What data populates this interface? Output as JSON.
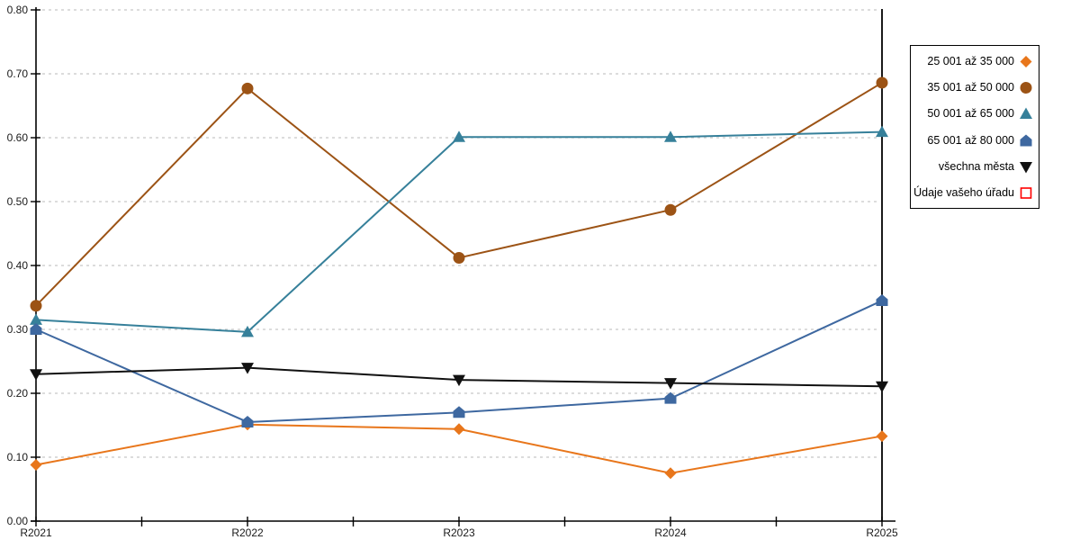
{
  "page": {
    "background_color": "#FFFFFF",
    "title": ""
  },
  "chart_data": {
    "type": "line",
    "title": "",
    "xlabel": "",
    "ylabel": "",
    "x": [
      "R2021",
      "R2022",
      "R2023",
      "R2024",
      "R2025"
    ],
    "yticks": [
      "0.00",
      "0.10",
      "0.20",
      "0.30",
      "0.40",
      "0.50",
      "0.60",
      "0.70",
      "0.80"
    ],
    "ylim": [
      0.0,
      0.8
    ],
    "ytick_step": 0.1,
    "grid": "horizontal-dotted",
    "gridline_color": "#C8C8C8",
    "axis_color": "#000000",
    "highlight_vline_x": "R2025",
    "legend_position": "right",
    "series": [
      {
        "name": "25 001 až 35 000",
        "marker": "diamond",
        "color": "#E8761B",
        "values": [
          0.088,
          0.151,
          0.144,
          0.075,
          0.133
        ]
      },
      {
        "name": "35 001 až 50 000",
        "marker": "circle",
        "color": "#9C5315",
        "values": [
          0.337,
          0.677,
          0.412,
          0.487,
          0.686
        ]
      },
      {
        "name": "50 001 až 65 000",
        "marker": "triangle-up",
        "color": "#36809A",
        "values": [
          0.315,
          0.296,
          0.601,
          0.601,
          0.609
        ]
      },
      {
        "name": "65 001 až 80 000",
        "marker": "pentagon",
        "color": "#3E68A0",
        "values": [
          0.3,
          0.155,
          0.17,
          0.192,
          0.345
        ]
      },
      {
        "name": "všechna města",
        "marker": "triangle-down",
        "color": "#111111",
        "values": [
          0.23,
          0.24,
          0.221,
          0.216,
          0.211
        ]
      },
      {
        "name": "Údaje vašeho úřadu",
        "marker": "square-open",
        "color": "#FF0000",
        "values": []
      }
    ]
  }
}
